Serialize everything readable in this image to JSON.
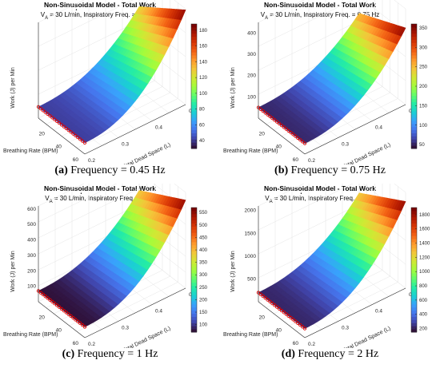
{
  "panels": [
    {
      "caption_tag": "(a)",
      "caption_text": "Frequency = 0.45 Hz",
      "chart_data": {
        "type": "surface",
        "title": "Non-Sinusoidal Model - Total Work",
        "subtitle_prefix": "V",
        "subtitle_sub": "A",
        "subtitle_rest": "= 30 L/min, Inspiratory Freq. = 0.45 Hz",
        "xlabel": "Total Dead Space (L)",
        "ylabel": "Breathing Rate (BPM)",
        "zlabel": "Work (J) per Min",
        "x_ticks": [
          "0.2",
          "0.3",
          "0.4",
          "0.5"
        ],
        "y_ticks": [
          "20",
          "40",
          "60"
        ],
        "z_ticks": [],
        "zlim": [
          20,
          190
        ],
        "colorbar_ticks": [
          40,
          60,
          80,
          100,
          120,
          140,
          160,
          180
        ],
        "colorbar_range": [
          30,
          188
        ],
        "corners": {
          "rate60_dead0.2": 130,
          "rate60_dead0.5": 188,
          "rate5_dead0.5": 40
        },
        "marker_series": "red circles along the 5 BPM edge",
        "grid": true
      }
    },
    {
      "caption_tag": "(b)",
      "caption_text": "Frequency = 0.75 Hz",
      "chart_data": {
        "type": "surface",
        "title": "Non-Sinusoidal Model - Total Work",
        "subtitle_prefix": "V",
        "subtitle_sub": "A",
        "subtitle_rest": "= 30 L/min, Inspiratory Freq. = 0.75 Hz",
        "xlabel": "Total Dead Space (L)",
        "ylabel": "Breathing Rate (BPM)",
        "zlabel": "Work (J) per Min",
        "x_ticks": [
          "0.2",
          "0.3",
          "0.4",
          "0.5"
        ],
        "y_ticks": [
          "20",
          "40",
          "60"
        ],
        "z_ticks": [
          100,
          200,
          300,
          400
        ],
        "zlim": [
          0,
          450
        ],
        "colorbar_ticks": [
          50,
          100,
          150,
          200,
          250,
          300,
          350
        ],
        "colorbar_range": [
          40,
          360
        ],
        "corners": {
          "rate60_dead0.2": 260,
          "rate60_dead0.5": 360,
          "rate5_dead0.5": 50
        },
        "marker_series": "red circles along the 5 BPM edge",
        "grid": true
      }
    },
    {
      "caption_tag": "(c)",
      "caption_text": "Frequency = 1 Hz",
      "chart_data": {
        "type": "surface",
        "title": "Non-Sinusoidal Model - Total Work",
        "subtitle_prefix": "V",
        "subtitle_sub": "A",
        "subtitle_rest": "= 30 L/min, Inspiratory Freq. = 1 Hz",
        "xlabel": "Total Dead Space (L)",
        "ylabel": "Breathing Rate (BPM)",
        "zlabel": "Work (J) per Min",
        "x_ticks": [
          "0.2",
          "0.3",
          "0.4",
          "0.5"
        ],
        "y_ticks": [
          "20",
          "40",
          "60"
        ],
        "z_ticks": [
          100,
          200,
          300,
          400,
          500,
          600
        ],
        "zlim": [
          0,
          620
        ],
        "colorbar_ticks": [
          100,
          150,
          200,
          250,
          300,
          350,
          400,
          450,
          500,
          550
        ],
        "colorbar_range": [
          70,
          570
        ],
        "corners": {
          "rate60_dead0.2": 400,
          "rate60_dead0.5": 570,
          "rate5_dead0.5": 70
        },
        "marker_series": "red circles along the 5 BPM edge",
        "grid": true
      }
    },
    {
      "caption_tag": "(d)",
      "caption_text": "Frequency = 2 Hz",
      "chart_data": {
        "type": "surface",
        "title": "Non-Sinusoidal Model - Total Work",
        "subtitle_prefix": "V",
        "subtitle_sub": "A",
        "subtitle_rest": "= 30 L/min, Inspiratory Freq. = 2 Hz",
        "xlabel": "Total Dead Space (L)",
        "ylabel": "Breathing Rate (BPM)",
        "zlabel": "Work (J) per Min",
        "x_ticks": [
          "0.2",
          "0.3",
          "0.4",
          "0.5"
        ],
        "y_ticks": [
          "20",
          "40",
          "60"
        ],
        "z_ticks": [
          500,
          1000,
          1500,
          2000
        ],
        "zlim": [
          0,
          2100
        ],
        "colorbar_ticks": [
          200,
          400,
          600,
          800,
          1000,
          1200,
          1400,
          1600,
          1800
        ],
        "colorbar_range": [
          150,
          1900
        ],
        "corners": {
          "rate60_dead0.2": 1300,
          "rate60_dead0.5": 1900,
          "rate5_dead0.5": 200
        },
        "marker_series": "red circles along the 5 BPM edge",
        "grid": true
      }
    }
  ],
  "colormap": [
    "#30123b",
    "#4145ab",
    "#4675ed",
    "#39a2fc",
    "#1bcfd4",
    "#24eca6",
    "#61fc6c",
    "#a4fc3b",
    "#d1e834",
    "#f3c63a",
    "#fe9b2d",
    "#f36315",
    "#d93806",
    "#b11901",
    "#7a0403"
  ]
}
